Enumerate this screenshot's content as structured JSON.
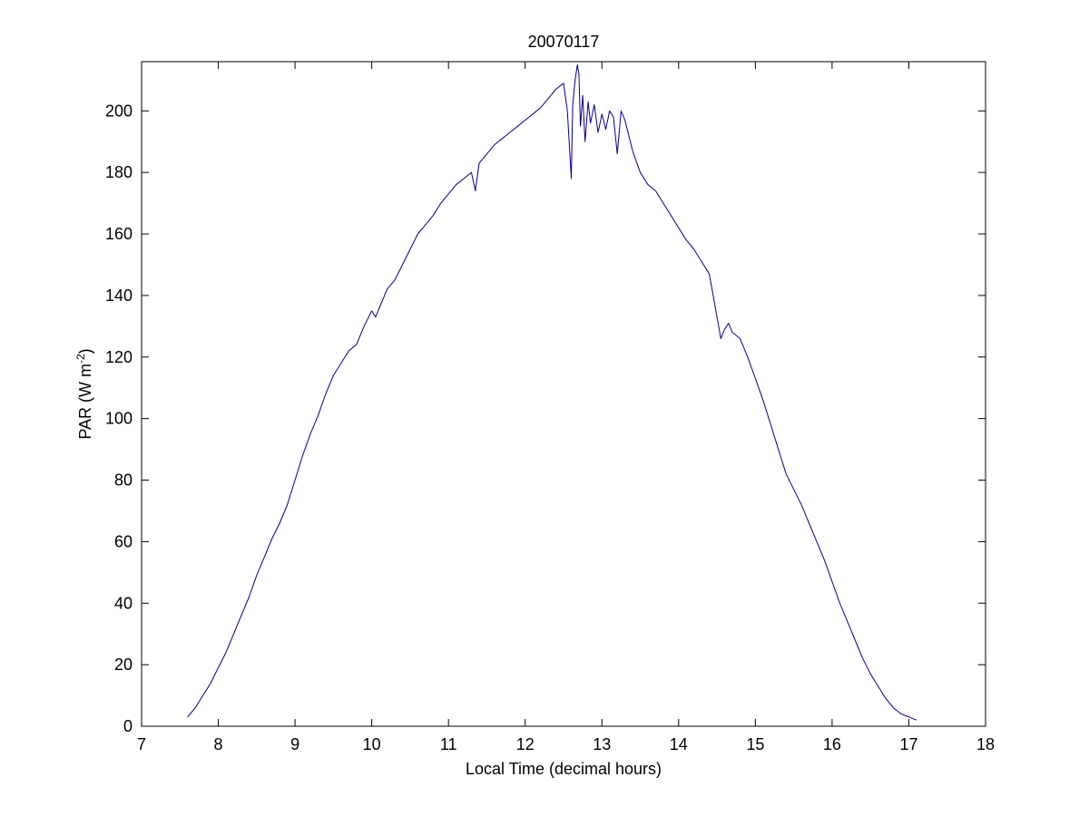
{
  "chart_data": {
    "type": "line",
    "title": "20070117",
    "xlabel": "Local Time (decimal hours)",
    "ylabel_main": "PAR (W m",
    "ylabel_exponent": "-2",
    "ylabel_close": ")",
    "xlim": [
      7,
      18
    ],
    "ylim": [
      0,
      216
    ],
    "xticks": [
      7,
      8,
      9,
      10,
      11,
      12,
      13,
      14,
      15,
      16,
      17,
      18
    ],
    "yticks": [
      0,
      20,
      40,
      60,
      80,
      100,
      120,
      140,
      160,
      180,
      200
    ],
    "grid": false,
    "line_color": "#00008b",
    "series": [
      {
        "x": [
          7.6,
          7.7,
          7.8,
          7.9,
          8.0,
          8.1,
          8.2,
          8.3,
          8.4,
          8.5,
          8.6,
          8.7,
          8.8,
          8.9,
          9.0,
          9.1,
          9.2,
          9.3,
          9.4,
          9.5,
          9.6,
          9.7,
          9.8,
          9.9,
          10.0,
          10.05,
          10.1,
          10.15,
          10.2,
          10.3,
          10.4,
          10.5,
          10.6,
          10.7,
          10.8,
          10.9,
          11.0,
          11.1,
          11.2,
          11.3,
          11.35,
          11.4,
          11.5,
          11.6,
          11.7,
          11.8,
          11.9,
          12.0,
          12.1,
          12.2,
          12.3,
          12.4,
          12.5,
          12.55,
          12.6,
          12.62,
          12.65,
          12.68,
          12.7,
          12.72,
          12.75,
          12.78,
          12.82,
          12.85,
          12.9,
          12.95,
          13.0,
          13.05,
          13.1,
          13.15,
          13.2,
          13.25,
          13.3,
          13.35,
          13.4,
          13.5,
          13.6,
          13.7,
          13.8,
          13.9,
          14.0,
          14.1,
          14.2,
          14.3,
          14.4,
          14.45,
          14.5,
          14.55,
          14.6,
          14.65,
          14.7,
          14.8,
          14.9,
          15.0,
          15.1,
          15.2,
          15.3,
          15.4,
          15.5,
          15.6,
          15.7,
          15.8,
          15.9,
          16.0,
          16.1,
          16.2,
          16.3,
          16.4,
          16.5,
          16.6,
          16.7,
          16.8,
          16.9,
          17.0,
          17.1
        ],
        "y": [
          3,
          6,
          10,
          14,
          19,
          24,
          30,
          36,
          42,
          49,
          55,
          61,
          66,
          72,
          80,
          88,
          95,
          101,
          108,
          114,
          118,
          122,
          124,
          130,
          135,
          133,
          136,
          139,
          142,
          145,
          150,
          155,
          160,
          163,
          166,
          170,
          173,
          176,
          178,
          180,
          174,
          183,
          186,
          189,
          191,
          193,
          195,
          197,
          199,
          201,
          204,
          207,
          209,
          200,
          178,
          202,
          210,
          215,
          212,
          195,
          205,
          190,
          203,
          196,
          202,
          193,
          199,
          194,
          200,
          198,
          186,
          200,
          197,
          192,
          187,
          180,
          176,
          174,
          170,
          166,
          162,
          158,
          155,
          151,
          147,
          140,
          133,
          126,
          129,
          131,
          128,
          126,
          120,
          113,
          106,
          98,
          90,
          82,
          77,
          72,
          66,
          60,
          54,
          47,
          40,
          34,
          28,
          22,
          17,
          13,
          9,
          6,
          4,
          3,
          2
        ]
      }
    ]
  }
}
